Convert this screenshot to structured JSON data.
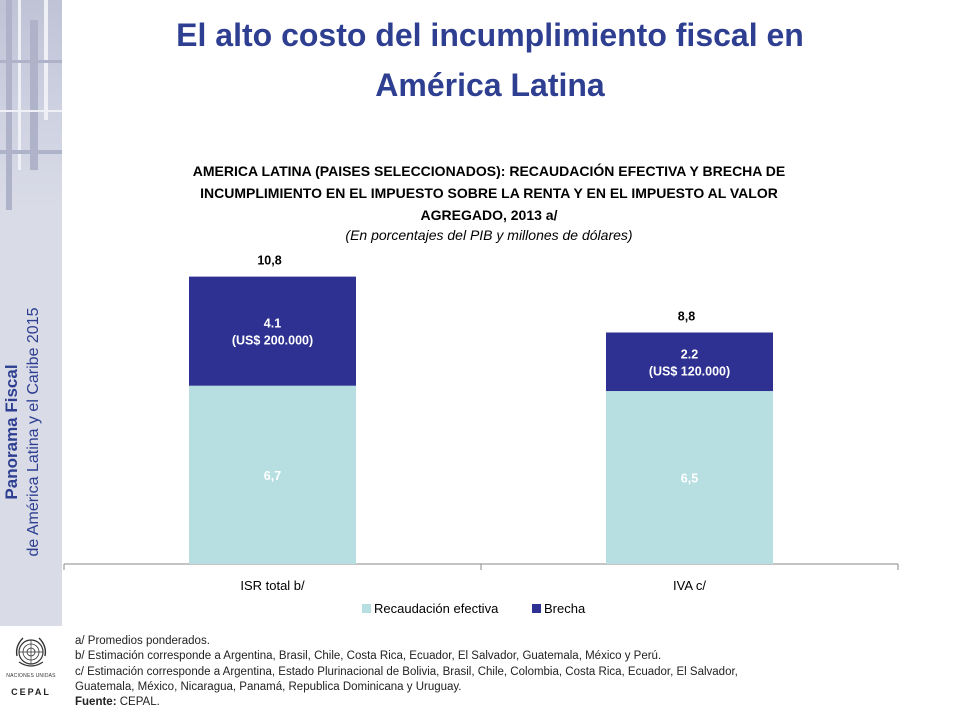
{
  "header": {
    "title_line1": "El alto costo del incumplimiento fiscal en",
    "title_line2": "América Latina"
  },
  "sidebar": {
    "title": "Panorama Fiscal",
    "subtitle": "de América Latina y el Caribe 2015",
    "logo_caption": "NACIONES UNIDAS",
    "logo_word": "CEPAL",
    "colors": {
      "panel": "#d9dbe7",
      "text": "#2e3f91"
    }
  },
  "chart_data": {
    "type": "bar",
    "stacked": true,
    "title": "AMERICA LATINA (PAISES SELECCIONADOS): RECAUDACIÓN EFECTIVA Y BRECHA DE INCUMPLIMIENTO EN EL IMPUESTO SOBRE LA RENTA Y EN EL IMPUESTO AL VALOR AGREGADO, 2013 a/",
    "title_lines": [
      "AMERICA LATINA (PAISES SELECCIONADOS):  RECAUDACIÓN EFECTIVA Y BRECHA DE",
      "INCUMPLIMIENTO EN EL IMPUESTO SOBRE LA RENTA Y EN EL IMPUESTO AL VALOR",
      "AGREGADO, 2013 a/"
    ],
    "subtitle": "(En porcentajes del PIB y millones de dólares)",
    "categories": [
      "ISR total b/",
      "IVA c/"
    ],
    "series": [
      {
        "name": "Recaudación efectiva",
        "color": "#b7dfe2",
        "values": [
          6.7,
          6.5
        ],
        "labels": [
          [
            "6,7"
          ],
          [
            "6,5"
          ]
        ]
      },
      {
        "name": "Brecha",
        "color": "#2e3192",
        "values": [
          4.1,
          2.2
        ],
        "labels": [
          [
            "4.1",
            "(US$ 200.000)"
          ],
          [
            "2.2",
            "(US$ 120.000)"
          ]
        ]
      }
    ],
    "totals": [
      10.8,
      8.8
    ],
    "total_labels": [
      "10,8",
      "8,8"
    ],
    "ylim": [
      0,
      11.8
    ],
    "grid": false,
    "legend": "bottom",
    "xlabel": "",
    "ylabel": ""
  },
  "notes": {
    "a": "a/ Promedios ponderados.",
    "b": "b/ Estimación corresponde a Argentina, Brasil, Chile, Costa Rica, Ecuador, El Salvador, Guatemala, México y Perú.",
    "c_line1": "c/ Estimación corresponde a Argentina, Estado Plurinacional de Bolivia, Brasil, Chile, Colombia, Costa Rica, Ecuador, El Salvador,",
    "c_line2": "Guatemala, México, Nicaragua, Panamá, Republica Dominicana y Uruguay.",
    "source_label": "Fuente:",
    "source_value": "CEPAL."
  }
}
